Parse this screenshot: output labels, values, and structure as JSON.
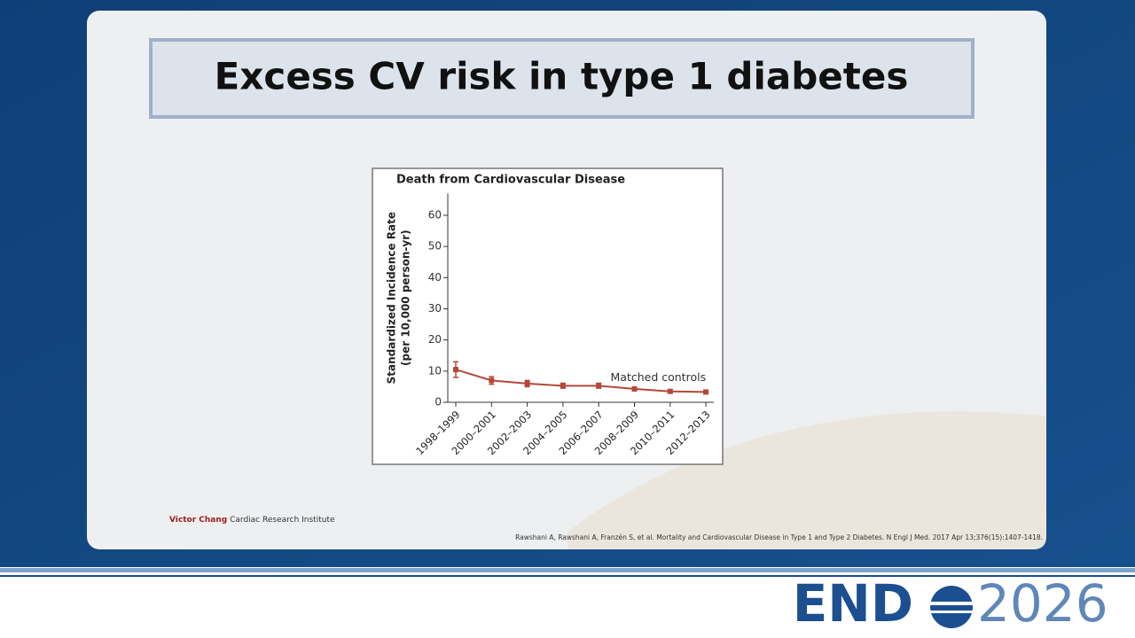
{
  "slide_title": "Excess CV risk in type 1 diabetes",
  "institute": {
    "bold": "Victor Chang",
    "rest": "Cardiac Research Institute"
  },
  "reference": "Rawshani A, Rawshani A, Franzén S, et al. Mortality and Cardiovascular Disease in Type 1 and Type 2 Diabetes. N Engl J Med. 2017 Apr 13;376(15):1407-1418.",
  "logo": {
    "left": "END",
    "right": "2026"
  },
  "chart_data": {
    "type": "line",
    "title": "Death from Cardiovascular Disease",
    "y_label": [
      "Standardized Incidence Rate",
      "(per 10,000 person-yr)"
    ],
    "categories": [
      "1998–1999",
      "2000–2001",
      "2002–2003",
      "2004–2005",
      "2006–2007",
      "2008–2009",
      "2010–2011",
      "2012–2013"
    ],
    "series": [
      {
        "name": "Matched controls",
        "color": "#b5473a",
        "values": [
          10.5,
          7,
          6,
          5.3,
          5.3,
          4.3,
          3.5,
          3.3
        ],
        "errors": [
          2.5,
          1.2,
          1,
          0.8,
          0.8,
          0.6,
          0.5,
          0.5
        ]
      }
    ],
    "ylim": [
      0,
      67
    ],
    "yticks": [
      0,
      10,
      20,
      30,
      40,
      50,
      60
    ]
  }
}
